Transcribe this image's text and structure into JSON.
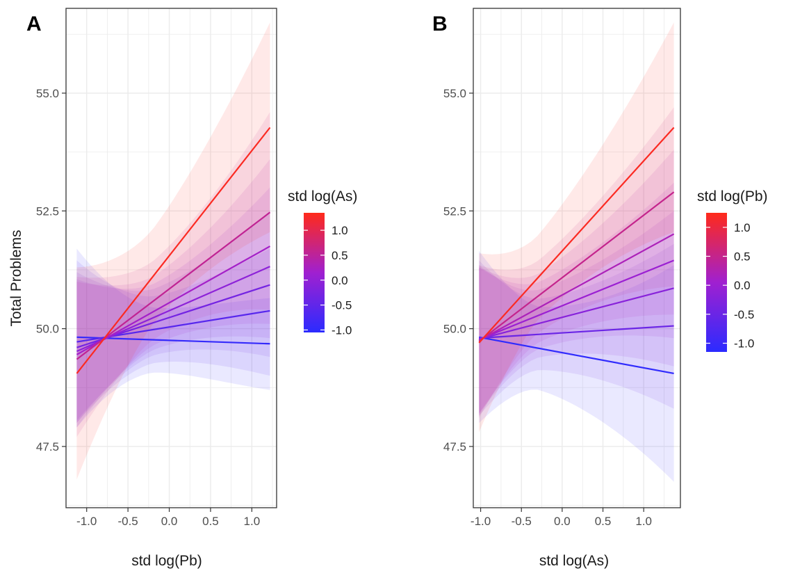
{
  "y_axis_title": "Total Problems",
  "colors": {
    "low": "#2b2bff",
    "mid": "#a020d0",
    "high": "#ff2a1a",
    "grid": "#ebebeb",
    "frame": "#333333"
  },
  "chart_data": [
    {
      "type": "line",
      "panel": "A",
      "xlabel": "std log(Pb)",
      "ylabel": "Total Problems",
      "xlim": [
        -1.25,
        1.3
      ],
      "ylim": [
        46.2,
        56.8
      ],
      "x_ticks": [
        "-1.0",
        "-0.5",
        "0.0",
        "0.5",
        "1.0"
      ],
      "y_ticks": [
        "47.5",
        "50.0",
        "52.5",
        "55.0"
      ],
      "grid": true,
      "legend": {
        "title": "std log(As)",
        "position": "right",
        "range": [
          -1.05,
          1.35
        ],
        "ticks": [
          "-1.0",
          "-0.5",
          "0.0",
          "0.5",
          "1.0"
        ]
      },
      "x": [
        -1.12,
        1.22
      ],
      "series": [
        {
          "mod": -0.95,
          "values": [
            49.82,
            49.68
          ],
          "ci_low": [
            47.9,
            48.7
          ],
          "ci_high": [
            51.7,
            50.65
          ]
        },
        {
          "mod": -0.6,
          "values": [
            49.72,
            50.38
          ],
          "ci_low": [
            48.0,
            49.0
          ],
          "ci_high": [
            51.45,
            51.7
          ]
        },
        {
          "mod": -0.3,
          "values": [
            49.6,
            50.93
          ],
          "ci_low": [
            48.05,
            49.4
          ],
          "ci_high": [
            51.2,
            52.5
          ]
        },
        {
          "mod": -0.05,
          "values": [
            49.52,
            51.32
          ],
          "ci_low": [
            48.0,
            49.8
          ],
          "ci_high": [
            51.05,
            53.0
          ]
        },
        {
          "mod": 0.2,
          "values": [
            49.45,
            51.75
          ],
          "ci_low": [
            47.9,
            50.1
          ],
          "ci_high": [
            51.0,
            53.6
          ]
        },
        {
          "mod": 0.55,
          "values": [
            49.35,
            52.47
          ],
          "ci_low": [
            47.7,
            50.4
          ],
          "ci_high": [
            51.1,
            54.6
          ]
        },
        {
          "mod": 1.3,
          "values": [
            49.05,
            54.27
          ],
          "ci_low": [
            46.8,
            52.05
          ],
          "ci_high": [
            51.3,
            56.5
          ]
        }
      ]
    },
    {
      "type": "line",
      "panel": "B",
      "xlabel": "std log(As)",
      "ylabel": "",
      "xlim": [
        -1.09,
        1.45
      ],
      "ylim": [
        46.2,
        56.8
      ],
      "x_ticks": [
        "-1.0",
        "-0.5",
        "0.0",
        "0.5",
        "1.0"
      ],
      "y_ticks": [
        "47.5",
        "50.0",
        "52.5",
        "55.0"
      ],
      "grid": true,
      "legend": {
        "title": "std log(Pb)",
        "position": "right",
        "range": [
          -1.15,
          1.25
        ],
        "ticks": [
          "-1.0",
          "-0.5",
          "0.0",
          "0.5",
          "1.0"
        ]
      },
      "x": [
        -1.02,
        1.37
      ],
      "series": [
        {
          "mod": -1.1,
          "values": [
            49.82,
            49.05
          ],
          "ci_low": [
            48.0,
            46.75
          ],
          "ci_high": [
            51.65,
            51.35
          ]
        },
        {
          "mod": -0.5,
          "values": [
            49.8,
            50.06
          ],
          "ci_low": [
            48.15,
            48.3
          ],
          "ci_high": [
            51.45,
            51.8
          ]
        },
        {
          "mod": -0.2,
          "values": [
            49.78,
            50.86
          ],
          "ci_low": [
            48.2,
            49.2
          ],
          "ci_high": [
            51.35,
            52.5
          ]
        },
        {
          "mod": 0.0,
          "values": [
            49.77,
            51.45
          ],
          "ci_low": [
            48.2,
            49.8
          ],
          "ci_high": [
            51.3,
            53.1
          ]
        },
        {
          "mod": 0.2,
          "values": [
            49.75,
            52.01
          ],
          "ci_low": [
            48.15,
            50.3
          ],
          "ci_high": [
            51.3,
            53.8
          ]
        },
        {
          "mod": 0.5,
          "values": [
            49.73,
            52.9
          ],
          "ci_low": [
            48.1,
            50.9
          ],
          "ci_high": [
            51.35,
            54.7
          ]
        },
        {
          "mod": 1.2,
          "values": [
            49.7,
            54.27
          ],
          "ci_low": [
            47.8,
            52.05
          ],
          "ci_high": [
            51.6,
            56.5
          ]
        }
      ]
    }
  ]
}
